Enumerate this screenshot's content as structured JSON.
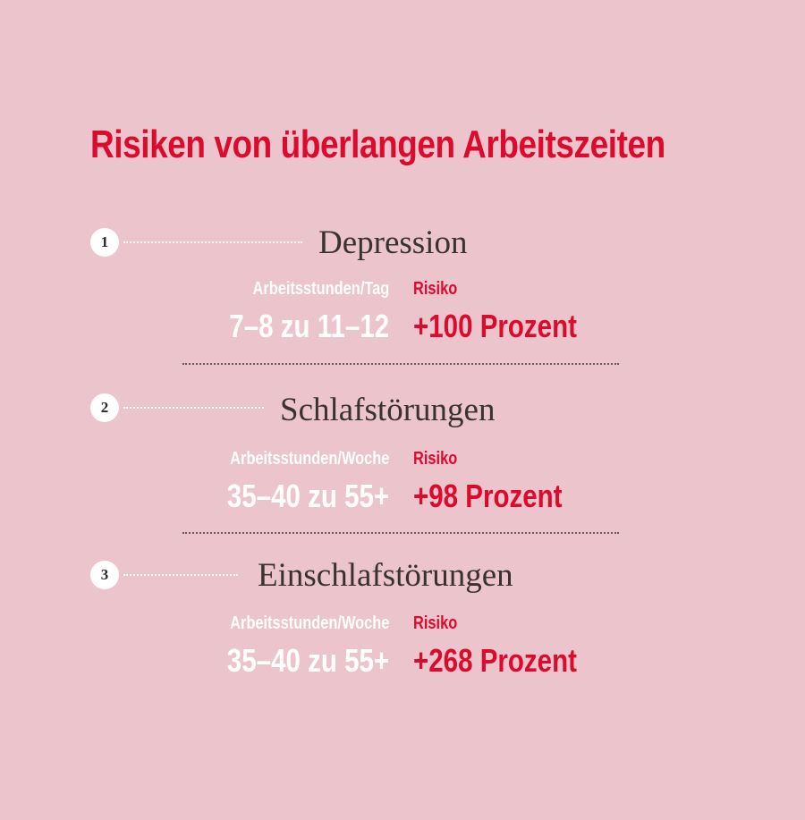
{
  "title": "Risiken von überlangen Arbeitszeiten",
  "items": [
    {
      "number": "1",
      "heading": "Depression",
      "hours_label": "Arbeitsstunden/Tag",
      "hours_value": "7–8 zu 11–12",
      "risk_label": "Risiko",
      "risk_value": "+100 Prozent"
    },
    {
      "number": "2",
      "heading": "Schlafstörungen",
      "hours_label": "Arbeitsstunden/Woche",
      "hours_value": "35–40 zu 55+",
      "risk_label": "Risiko",
      "risk_value": "+98 Prozent"
    },
    {
      "number": "3",
      "heading": "Einschlafstörungen",
      "hours_label": "Arbeitsstunden/Woche",
      "hours_value": "35–40 zu 55+",
      "risk_label": "Risiko",
      "risk_value": "+268 Prozent"
    }
  ],
  "colors": {
    "background": "#ecc4cb",
    "accent": "#dc0a2d",
    "heading_text": "#3a3232",
    "label_text": "#ffffff"
  }
}
